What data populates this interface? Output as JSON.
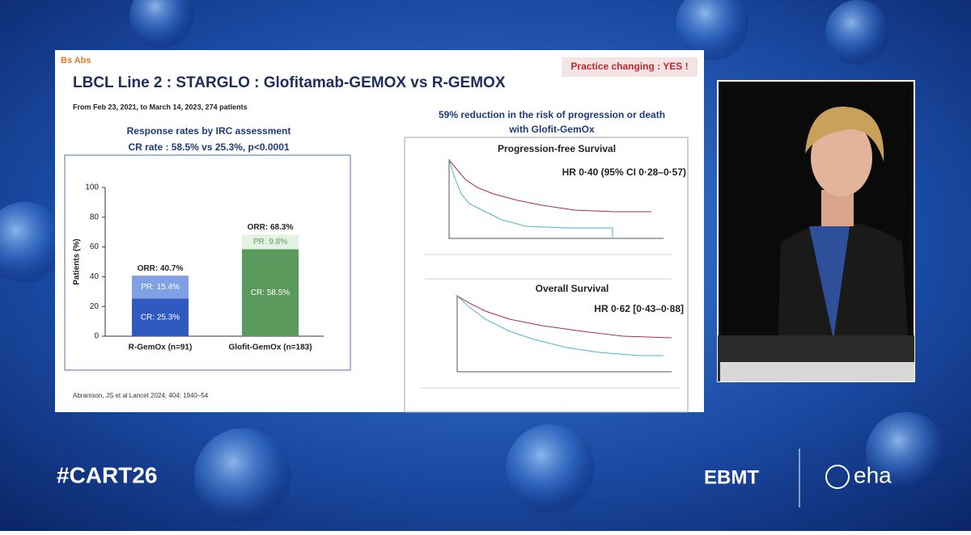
{
  "header": {
    "tag": "Bs Abs",
    "title": "LBCL Line 2 : STARGLO : Glofitamab-GEMOX vs R-GEMOX",
    "badge": "Practice changing : YES !",
    "subtitle": "From Feb 23, 2021, to March 14, 2023, 274 patients"
  },
  "left": {
    "heading": "Response rates by IRC assessment",
    "subheading": "CR rate : 58.5% vs 25.3%, p<0.0001"
  },
  "chart_data": {
    "type": "stacked_bar",
    "y_label": "Patients (%)",
    "categories": [
      "R-GemOx (n=91)",
      "Glofit-GemOx (n=183)"
    ],
    "series": [
      {
        "colors": [
          "#2f5bc0",
          "#5b9a5d"
        ],
        "label_colors": [
          "#ffffff",
          "#ffffff"
        ],
        "values": [
          25.3,
          58.5
        ],
        "value_labels": [
          "CR: 25.3%",
          "CR: 58.5%"
        ]
      },
      {
        "colors": [
          "#7fa0e3",
          "#e4f2e4"
        ],
        "label_colors": [
          "#ffffff",
          "#5b9a5d"
        ],
        "values": [
          15.4,
          9.8
        ],
        "value_labels": [
          "PR: 15.4%",
          "PR: 9.8%"
        ]
      }
    ],
    "total_labels": [
      "ORR: 40.7%",
      "ORR: 68.3%"
    ],
    "ylim": [
      0,
      100
    ],
    "yticks": [
      0,
      20,
      40,
      60,
      80,
      100
    ]
  },
  "citation": "Abramson, JS et al Lancet 2024; 404: 1940–54",
  "right": {
    "heading": "59% reduction in the risk of progression or death",
    "heading2": "with Glofit-GemOx",
    "pfs_title": "Progression-free Survival",
    "pfs_hr": "HR 0·40 (95% CI 0·28–0·57)",
    "os_title": "Overall Survival",
    "os_hr": "HR 0·62 [0·43–0·88]"
  },
  "footer": {
    "hashtag": "#CART26",
    "logo1": "EBMT",
    "logo2": "eha"
  }
}
